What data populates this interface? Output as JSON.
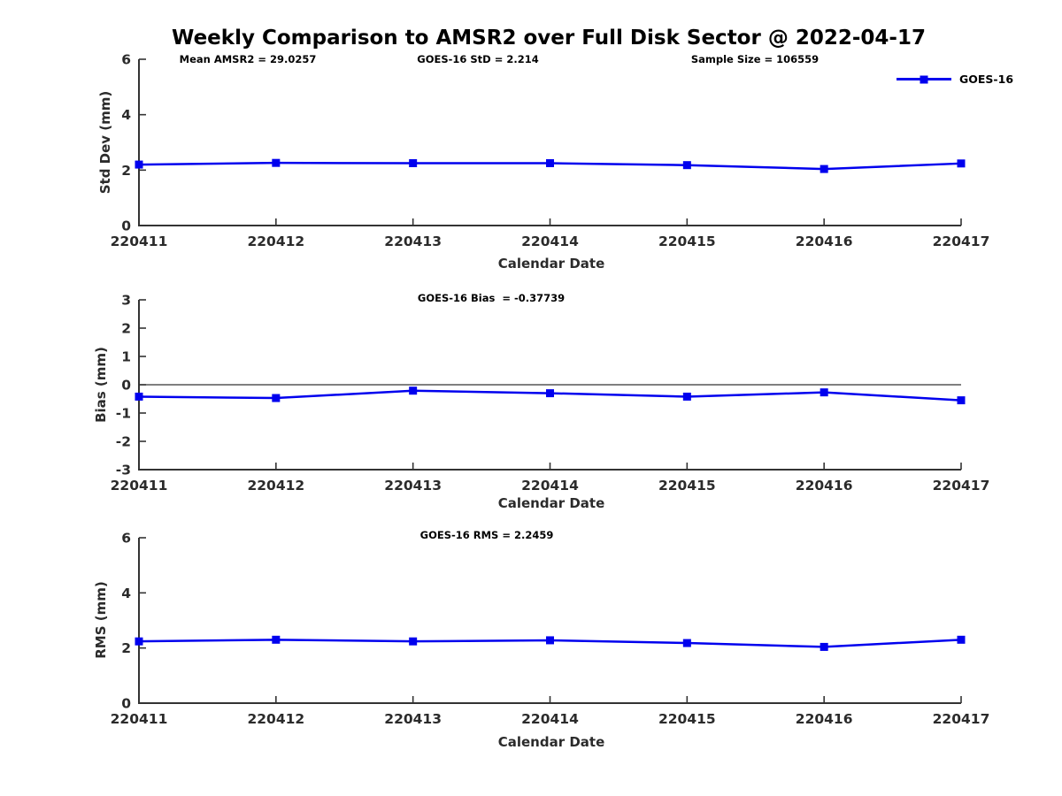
{
  "title": "Weekly Comparison to AMSR2 over Full Disk Sector @ 2022-04-17",
  "legend": {
    "label": "GOES-16"
  },
  "colors": {
    "series": "#0000EE",
    "axis": "#333333",
    "zero_line": "#333333",
    "text": "#000000"
  },
  "chart_data": [
    {
      "type": "line",
      "name": "std-dev",
      "title": "",
      "annotations": [
        "Mean AMSR2 = 29.0257",
        "GOES-16 StD = 2.214",
        "Sample Size = 106559"
      ],
      "categories": [
        "220411",
        "220412",
        "220413",
        "220414",
        "220415",
        "220416",
        "220417"
      ],
      "series": [
        {
          "name": "GOES-16",
          "values": [
            2.2,
            2.26,
            2.25,
            2.25,
            2.18,
            2.04,
            2.24
          ]
        }
      ],
      "xlabel": "Calendar Date",
      "ylabel": "Std Dev (mm)",
      "ylim": [
        0,
        6
      ],
      "yticks": [
        0,
        2,
        4,
        6
      ],
      "zero_line": false,
      "grid": false,
      "legend_position": "top-right"
    },
    {
      "type": "line",
      "name": "bias",
      "title": "",
      "annotations": [
        "GOES-16 Bias  = -0.37739"
      ],
      "categories": [
        "220411",
        "220412",
        "220413",
        "220414",
        "220415",
        "220416",
        "220417"
      ],
      "series": [
        {
          "name": "GOES-16",
          "values": [
            -0.42,
            -0.47,
            -0.21,
            -0.3,
            -0.42,
            -0.27,
            -0.55
          ]
        }
      ],
      "xlabel": "Calendar Date",
      "ylabel": "Bias (mm)",
      "ylim": [
        -3,
        3
      ],
      "yticks": [
        -3,
        -2,
        -1,
        0,
        1,
        2,
        3
      ],
      "zero_line": true,
      "grid": false,
      "legend_position": "none"
    },
    {
      "type": "line",
      "name": "rms",
      "title": "",
      "annotations": [
        "GOES-16 RMS = 2.2459"
      ],
      "categories": [
        "220411",
        "220412",
        "220413",
        "220414",
        "220415",
        "220416",
        "220417"
      ],
      "series": [
        {
          "name": "GOES-16",
          "values": [
            2.24,
            2.3,
            2.24,
            2.28,
            2.18,
            2.04,
            2.3
          ]
        }
      ],
      "xlabel": "Calendar Date",
      "ylabel": "RMS (mm)",
      "ylim": [
        0,
        6
      ],
      "yticks": [
        0,
        2,
        4,
        6
      ],
      "zero_line": false,
      "grid": false,
      "legend_position": "none"
    }
  ]
}
